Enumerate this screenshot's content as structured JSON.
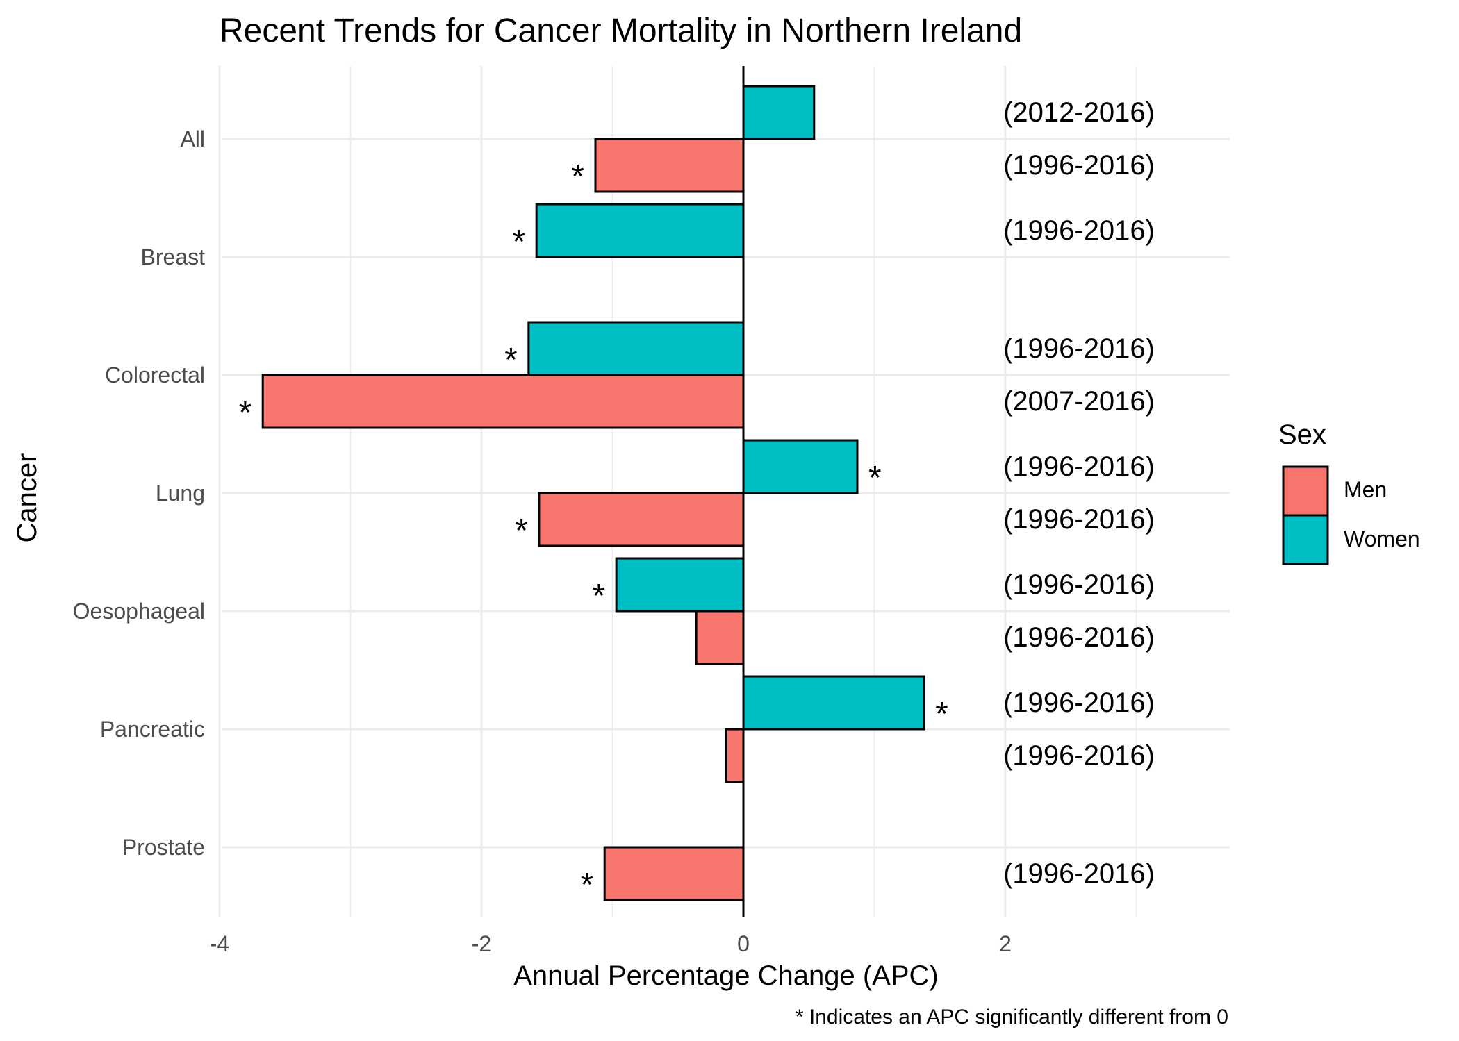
{
  "chart_data": {
    "type": "bar",
    "orientation": "horizontal",
    "title": "Recent Trends for Cancer Mortality in Northern Ireland",
    "xlabel": "Annual Percentage Change (APC)",
    "ylabel": "Cancer",
    "footnote": "* Indicates an APC significantly different from 0",
    "xlim": [
      -4,
      3.7
    ],
    "x_ticks": [
      -4,
      -2,
      0,
      2
    ],
    "x_tick_labels": [
      "-4",
      "-2",
      "0",
      "2"
    ],
    "grid": true,
    "legend": {
      "title": "Sex",
      "position": "right",
      "entries": [
        {
          "name": "Men",
          "color": "#F8766D"
        },
        {
          "name": "Women",
          "color": "#00BFC4"
        }
      ]
    },
    "significance_marker": "*",
    "categories": [
      "All",
      "Breast",
      "Colorectal",
      "Lung",
      "Oesophageal",
      "Pancreatic",
      "Prostate"
    ],
    "series": [
      {
        "name": "Men",
        "color": "#F8766D",
        "values": [
          -1.13,
          null,
          -3.67,
          -1.56,
          -0.36,
          -0.13,
          -1.06
        ],
        "significant": [
          true,
          null,
          true,
          true,
          false,
          false,
          true
        ],
        "periods": [
          "(1996-2016)",
          null,
          "(2007-2016)",
          "(1996-2016)",
          "(1996-2016)",
          "(1996-2016)",
          "(1996-2016)"
        ]
      },
      {
        "name": "Women",
        "color": "#00BFC4",
        "values": [
          0.54,
          -1.58,
          -1.64,
          0.87,
          -0.97,
          1.38,
          null
        ],
        "significant": [
          false,
          true,
          true,
          true,
          true,
          true,
          null
        ],
        "periods": [
          "(2012-2016)",
          "(1996-2016)",
          "(1996-2016)",
          "(1996-2016)",
          "(1996-2016)",
          "(1996-2016)",
          null
        ]
      }
    ]
  }
}
